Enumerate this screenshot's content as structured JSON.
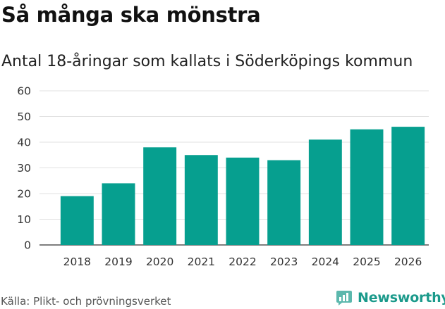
{
  "chart_data": {
    "type": "bar",
    "title": "Så många ska mönstra",
    "subtitle": "Antal 18-åringar som kallats i Söderköpings kommun",
    "categories": [
      "2018",
      "2019",
      "2020",
      "2021",
      "2022",
      "2023",
      "2024",
      "2025",
      "2026"
    ],
    "values": [
      19,
      24,
      38,
      35,
      34,
      33,
      41,
      45,
      46
    ],
    "yticks": [
      "0",
      "10",
      "20",
      "30",
      "40",
      "50",
      "60"
    ],
    "ylim": [
      0,
      60
    ],
    "xlabel": "",
    "ylabel": "",
    "grid": true,
    "bar_color": "#069f8f"
  },
  "footer": {
    "source": "Källa: Plikt- och prövningsverket",
    "brand": "Newsworthy"
  },
  "colors": {
    "accent": "#069f8f",
    "brand": "#1b9a8b"
  }
}
